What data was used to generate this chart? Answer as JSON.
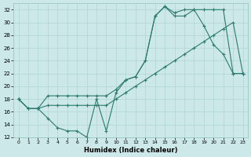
{
  "xlabel": "Humidex (Indice chaleur)",
  "xlim": [
    -0.5,
    23.5
  ],
  "ylim": [
    12,
    33
  ],
  "yticks": [
    12,
    14,
    16,
    18,
    20,
    22,
    24,
    26,
    28,
    30,
    32
  ],
  "xticks": [
    0,
    1,
    2,
    3,
    4,
    5,
    6,
    7,
    8,
    9,
    10,
    11,
    12,
    13,
    14,
    15,
    16,
    17,
    18,
    19,
    20,
    21,
    22,
    23
  ],
  "bg_color": "#cce8e8",
  "line_color": "#2d7a6e",
  "grid_color": "#b0d4d4",
  "line1_x": [
    0,
    1,
    2,
    3,
    4,
    5,
    6,
    7,
    8,
    9,
    10,
    11,
    12,
    13,
    14,
    15,
    16,
    17,
    18,
    19,
    20,
    21,
    22,
    23
  ],
  "line1_y": [
    18,
    16.5,
    16.5,
    15,
    13.5,
    13,
    13,
    12,
    18,
    13,
    19,
    21,
    21.5,
    24,
    31,
    32.5,
    31,
    31,
    32,
    29.5,
    26.5,
    25,
    22,
    22
  ],
  "line2_x": [
    0,
    1,
    2,
    3,
    4,
    5,
    6,
    7,
    8,
    9,
    10,
    11,
    12,
    13,
    14,
    15,
    16,
    17,
    18,
    19,
    20,
    21,
    22,
    23
  ],
  "line2_y": [
    18,
    16.5,
    16.5,
    18.5,
    18.5,
    18.5,
    18.5,
    18.5,
    18.5,
    18.5,
    19.5,
    21,
    21.5,
    24,
    31,
    32.5,
    31.5,
    32,
    32,
    32,
    32,
    32,
    22,
    22
  ],
  "line3_x": [
    0,
    1,
    2,
    3,
    4,
    5,
    6,
    7,
    8,
    9,
    10,
    11,
    12,
    13,
    14,
    15,
    16,
    17,
    18,
    19,
    20,
    21,
    22,
    23
  ],
  "line3_y": [
    18,
    16.5,
    16.5,
    17,
    17,
    17,
    17,
    17,
    17,
    17,
    18,
    19,
    20,
    21,
    22,
    23,
    24,
    25,
    26,
    27,
    28,
    29,
    30,
    22
  ]
}
